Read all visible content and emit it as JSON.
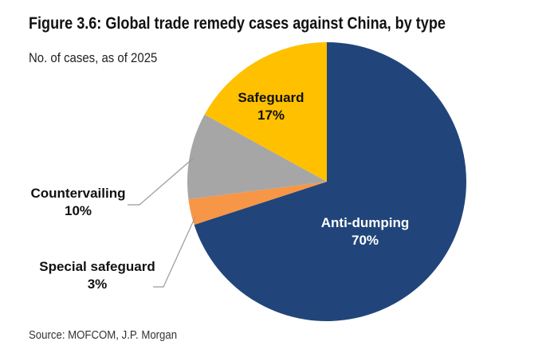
{
  "chart_data": {
    "type": "pie",
    "title": "Figure 3.6: Global trade remedy cases against China, by type",
    "subtitle": "No. of cases, as of 2025",
    "source": "Source: MOFCOM, J.P. Morgan",
    "slices": [
      {
        "label": "Anti-dumping",
        "value": 70,
        "value_label": "70%",
        "color": "#21457A",
        "text_color": "#ffffff"
      },
      {
        "label": "Special safeguard",
        "value": 3,
        "value_label": "3%",
        "color": "#F79646",
        "text_color": "#111111"
      },
      {
        "label": "Countervailing",
        "value": 10,
        "value_label": "10%",
        "color": "#A6A6A6",
        "text_color": "#111111"
      },
      {
        "label": "Safeguard",
        "value": 17,
        "value_label": "17%",
        "color": "#FFC000",
        "text_color": "#111111"
      }
    ]
  }
}
